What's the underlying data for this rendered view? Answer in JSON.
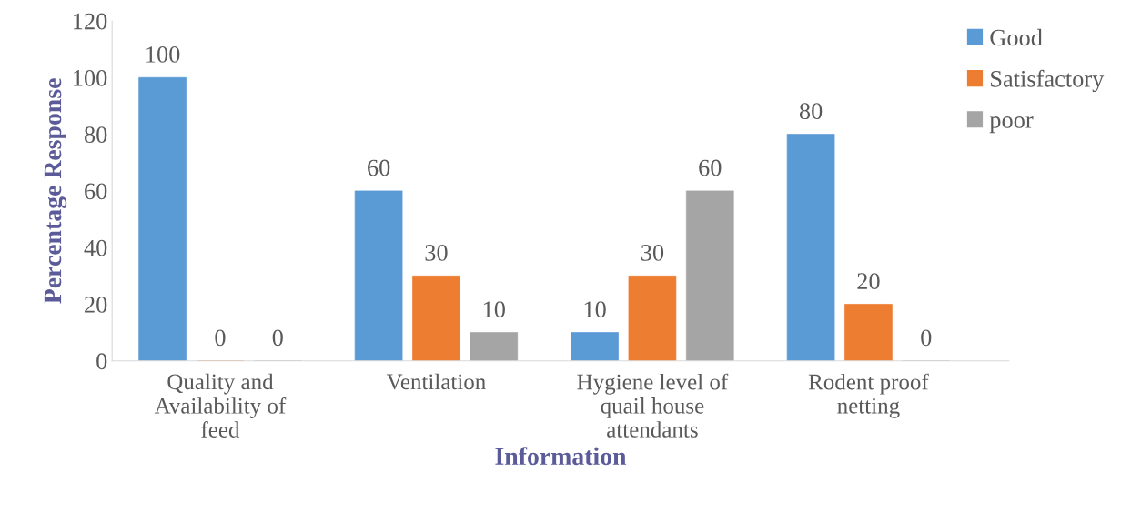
{
  "chart_data": {
    "type": "bar",
    "xlabel": "Information",
    "ylabel": "Percentage Response",
    "categories": [
      "Quality and\nAvailability of\nfeed",
      "Ventilation",
      "Hygiene level of\nquail house\nattendants",
      "Rodent proof\nnetting"
    ],
    "series": [
      {
        "name": "Good",
        "color": "#5b9bd5",
        "values": [
          100,
          60,
          10,
          80
        ]
      },
      {
        "name": "Satisfactory",
        "color": "#ed7d31",
        "values": [
          0,
          30,
          30,
          20
        ]
      },
      {
        "name": "poor",
        "color": "#a5a5a5",
        "values": [
          0,
          10,
          60,
          0
        ]
      }
    ],
    "ylim": [
      0,
      120
    ],
    "yticks": [
      0,
      20,
      40,
      60,
      80,
      100,
      120
    ],
    "grid": false,
    "legend": "top right",
    "data_labels": true
  }
}
